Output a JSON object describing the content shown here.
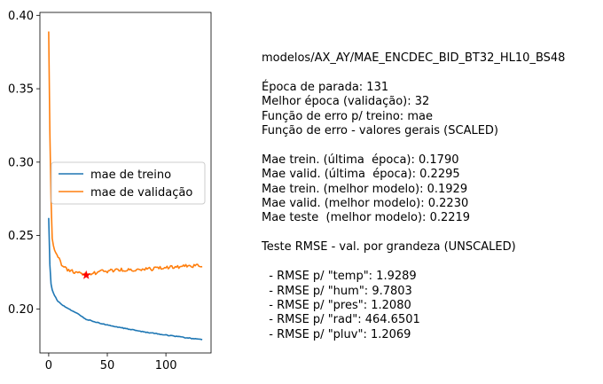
{
  "chart_data": {
    "type": "line",
    "x_range": [
      0,
      131
    ],
    "xlim": [
      -7.5,
      138.5
    ],
    "ylim": [
      0.17,
      0.402
    ],
    "x_ticks": [
      0,
      50,
      100
    ],
    "y_ticks": [
      0.2,
      0.25,
      0.3,
      0.35,
      0.4
    ],
    "x_tick_labels": [
      "0",
      "50",
      "100"
    ],
    "y_tick_labels": [
      "0.20",
      "0.25",
      "0.30",
      "0.35",
      "0.40"
    ],
    "grid": false,
    "legend_position": "center-left",
    "series": [
      {
        "name": "mae de treino",
        "color": "#1f77b4",
        "keypoints": [
          [
            0,
            0.262
          ],
          [
            1,
            0.23
          ],
          [
            2,
            0.217
          ],
          [
            3,
            0.213
          ],
          [
            5,
            0.209
          ],
          [
            8,
            0.205
          ],
          [
            12,
            0.2025
          ],
          [
            17,
            0.2
          ],
          [
            25,
            0.1965
          ],
          [
            32,
            0.1929
          ],
          [
            45,
            0.19
          ],
          [
            60,
            0.1875
          ],
          [
            80,
            0.1845
          ],
          [
            100,
            0.1822
          ],
          [
            115,
            0.1806
          ],
          [
            131,
            0.179
          ]
        ]
      },
      {
        "name": "mae de validação",
        "color": "#ff7f0e",
        "keypoints": [
          [
            0,
            0.389
          ],
          [
            1,
            0.32
          ],
          [
            2,
            0.275
          ],
          [
            3,
            0.248
          ],
          [
            5,
            0.24
          ],
          [
            8,
            0.235
          ],
          [
            12,
            0.229
          ],
          [
            18,
            0.226
          ],
          [
            25,
            0.2245
          ],
          [
            32,
            0.223
          ],
          [
            45,
            0.2255
          ],
          [
            60,
            0.2265
          ],
          [
            80,
            0.2268
          ],
          [
            100,
            0.228
          ],
          [
            115,
            0.229
          ],
          [
            131,
            0.2295
          ]
        ]
      }
    ],
    "marker": {
      "symbol": "star",
      "color": "#ff0000",
      "x": 32,
      "y": 0.223
    }
  },
  "legend": {
    "items": [
      {
        "label": "mae de treino",
        "color": "#1f77b4"
      },
      {
        "label": "mae de validação",
        "color": "#ff7f0e"
      }
    ]
  },
  "info": {
    "lines": [
      "modelos/AX_AY/MAE_ENCDEC_BID_BT32_HL10_BS48",
      "",
      "Época de parada: 131",
      "Melhor época (validação): 32",
      "Função de erro p/ treino: mae",
      "Função de erro - valores gerais (SCALED)",
      "",
      "Mae trein. (última  época): 0.1790",
      "Mae valid. (última  época): 0.2295",
      "Mae trein. (melhor modelo): 0.1929",
      "Mae valid. (melhor modelo): 0.2230",
      "Mae teste  (melhor modelo): 0.2219",
      "",
      "Teste RMSE - val. por grandeza (UNSCALED)",
      "",
      "  - RMSE p/ \"temp\": 1.9289",
      "  - RMSE p/ \"hum\": 9.7803",
      "  - RMSE p/ \"pres\": 1.2080",
      "  - RMSE p/ \"rad\": 464.6501",
      "  - RMSE p/ \"pluv\": 1.2069"
    ]
  }
}
